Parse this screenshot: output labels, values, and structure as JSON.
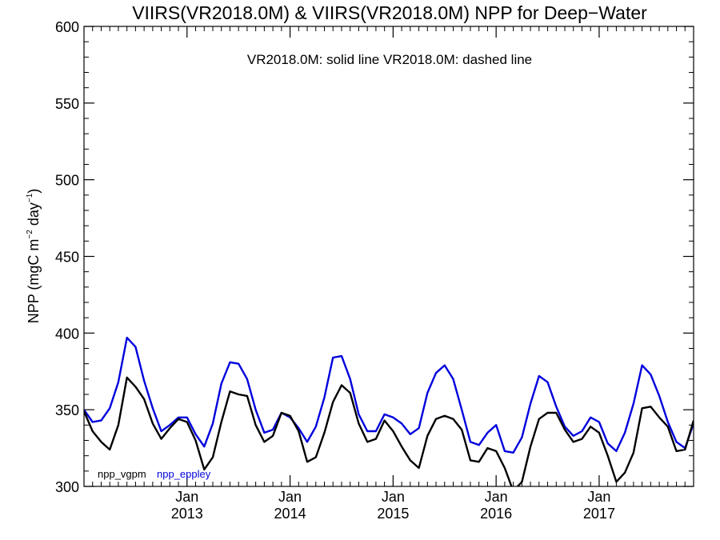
{
  "chart_data": {
    "type": "line",
    "title": "VIIRS(VR2018.0M) & VIIRS(VR2018.0M)  NPP for Deep−Water",
    "subtitle": "VR2018.0M: solid line   VR2018.0M: dashed line",
    "ylabel": "NPP (mgC m",
    "ylabel_sup1": "−2",
    "ylabel_mid": " day",
    "ylabel_sup2": "−1",
    "ylabel_end": ")",
    "xlabel": "",
    "ylim": [
      300,
      600
    ],
    "y_ticks": [
      "300",
      "350",
      "400",
      "450",
      "500",
      "550",
      "600"
    ],
    "x_ticks": [
      {
        "month": "Jan",
        "year": "2013",
        "pos": 12
      },
      {
        "month": "Jan",
        "year": "2014",
        "pos": 24
      },
      {
        "month": "Jan",
        "year": "2015",
        "pos": 36
      },
      {
        "month": "Jan",
        "year": "2016",
        "pos": 48
      },
      {
        "month": "Jan",
        "year": "2017",
        "pos": 60
      }
    ],
    "x_range": [
      0,
      71
    ],
    "x_unit": "months since Jan 2012",
    "grid": false,
    "legend": "bottom-left",
    "series": [
      {
        "name": "npp_vgpm",
        "color": "#000000",
        "x_start": 0,
        "values": [
          349,
          336,
          329,
          324,
          340,
          371,
          365,
          357,
          341,
          331,
          338,
          344,
          342,
          330,
          311,
          319,
          342,
          362,
          360,
          359,
          340,
          329,
          333,
          348,
          346,
          336,
          316,
          319,
          335,
          355,
          366,
          361,
          341,
          329,
          331,
          343,
          336,
          326,
          317,
          312,
          333,
          344,
          346,
          344,
          337,
          317,
          316,
          325,
          323,
          312,
          297,
          303,
          326,
          344,
          348,
          348,
          337,
          329,
          331,
          339,
          335,
          320,
          303,
          309,
          322,
          351,
          352,
          345,
          339,
          323,
          324,
          343
        ]
      },
      {
        "name": "npp_eppley",
        "color": "#0000dd",
        "x_start": 0,
        "values": [
          350,
          342,
          343,
          351,
          368,
          397,
          391,
          369,
          351,
          336,
          340,
          345,
          345,
          334,
          326,
          341,
          367,
          381,
          380,
          370,
          350,
          335,
          337,
          348,
          345,
          338,
          329,
          339,
          358,
          384,
          385,
          370,
          347,
          336,
          336,
          347,
          345,
          341,
          334,
          338,
          361,
          374,
          379,
          370,
          350,
          329,
          327,
          335,
          340,
          323,
          322,
          332,
          354,
          372,
          368,
          352,
          339,
          333,
          336,
          345,
          342,
          328,
          323,
          335,
          354,
          379,
          373,
          359,
          342,
          329,
          325,
          341
        ]
      }
    ]
  }
}
